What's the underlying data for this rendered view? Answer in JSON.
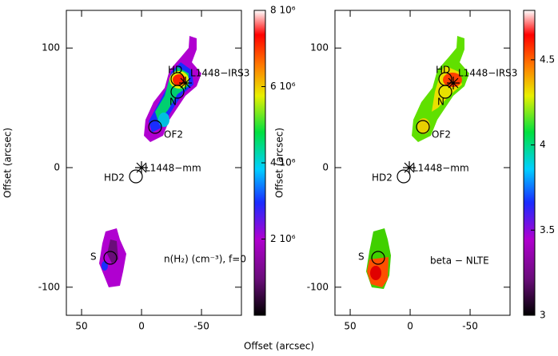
{
  "chart_data": [
    {
      "type": "map",
      "xlabel": "Offset (arcsec)",
      "ylabel": "Offset (arcsec)",
      "xlim": [
        62.7,
        -83.3
      ],
      "ylim": [
        -123.5,
        131.5
      ],
      "xticks": [
        50,
        0,
        -50
      ],
      "yticks": [
        100,
        0,
        -100
      ],
      "annotations": [
        "HD",
        "L1448−IRS3",
        "N",
        "OF2",
        "L1448−mm",
        "HD2",
        "S",
        "n(H₂) (cm⁻³), f=0"
      ],
      "colorbar": {
        "lim": [
          0,
          8000000
        ],
        "ticks": [
          {
            "value": 2000000,
            "label": "2 10⁶"
          },
          {
            "value": 4000000,
            "label": "4 10⁶"
          },
          {
            "value": 6000000,
            "label": "6 10⁶"
          },
          {
            "value": 8000000,
            "label": "8 10⁶"
          }
        ]
      }
    },
    {
      "type": "map",
      "ylabel": "Offset (arcsec)",
      "xlim": [
        62.7,
        -83.3
      ],
      "ylim": [
        -123.5,
        131.5
      ],
      "xticks": [
        50,
        0,
        -50
      ],
      "yticks": [
        100,
        0,
        -100
      ],
      "annotations": [
        "HD",
        "L1448−IRS3",
        "N",
        "OF2",
        "L1448−mm",
        "HD2",
        "S",
        "beta − NLTE"
      ],
      "colorbar": {
        "lim": [
          3,
          4.79
        ],
        "ticks": [
          3,
          3.5,
          4,
          4.5
        ]
      }
    }
  ]
}
